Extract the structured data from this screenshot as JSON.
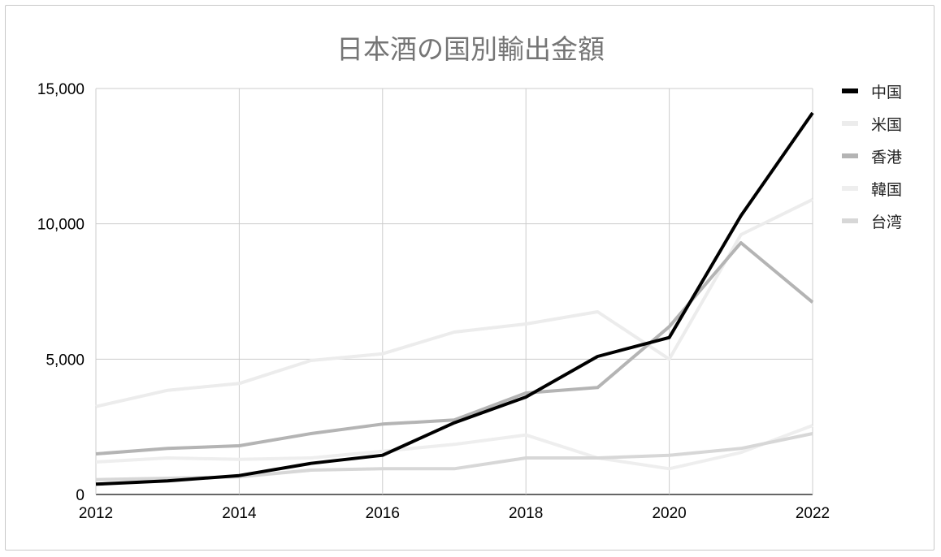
{
  "chart_data": {
    "type": "line",
    "title": "日本酒の国別輸出金額",
    "xlabel": "",
    "ylabel": "",
    "x": [
      2012,
      2013,
      2014,
      2015,
      2016,
      2017,
      2018,
      2019,
      2020,
      2021,
      2022
    ],
    "x_ticks": [
      "2012",
      "2014",
      "2016",
      "2018",
      "2020",
      "2022"
    ],
    "y_ticks": [
      "0",
      "5,000",
      "10,000",
      "15,000"
    ],
    "ylim": [
      0,
      15000
    ],
    "grid": true,
    "legend_position": "right",
    "series": [
      {
        "name": "中国",
        "color": "#000000",
        "values": [
          380,
          500,
          700,
          1150,
          1450,
          2650,
          3600,
          5100,
          5800,
          10300,
          14100
        ]
      },
      {
        "name": "米国",
        "color": "#ececec",
        "values": [
          3250,
          3850,
          4100,
          4950,
          5200,
          6000,
          6300,
          6750,
          5000,
          9600,
          10900
        ]
      },
      {
        "name": "香港",
        "color": "#b4b4b4",
        "values": [
          1500,
          1700,
          1800,
          2250,
          2600,
          2750,
          3750,
          3950,
          6200,
          9300,
          7100
        ]
      },
      {
        "name": "韓国",
        "color": "#eeeeee",
        "values": [
          1200,
          1350,
          1300,
          1350,
          1600,
          1850,
          2200,
          1350,
          950,
          1550,
          2550
        ]
      },
      {
        "name": "台湾",
        "color": "#d7d7d7",
        "values": [
          550,
          600,
          650,
          900,
          950,
          950,
          1350,
          1350,
          1450,
          1700,
          2250
        ]
      }
    ]
  }
}
